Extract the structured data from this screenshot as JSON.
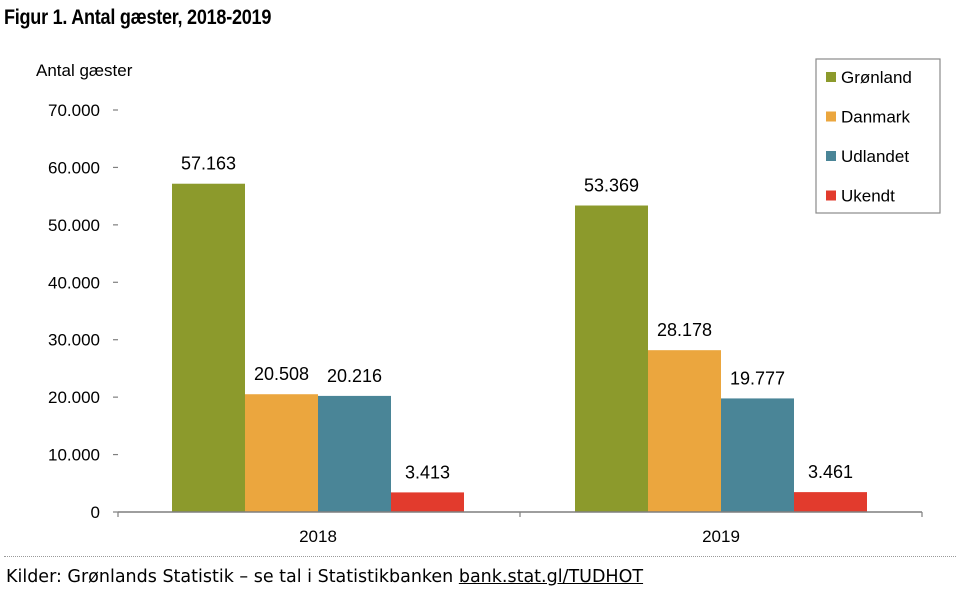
{
  "title": "Figur 1. Antal gæster, 2018-2019",
  "source": {
    "text": "Kilder: Grønlands Statistik – se tal i Statistikbanken ",
    "link": "bank.stat.gl/TUDHOT"
  },
  "chart_data": {
    "type": "bar",
    "ylabel": "Antal gæster",
    "categories": [
      "2018",
      "2019"
    ],
    "ylim": [
      0,
      70000
    ],
    "yticks": [
      0,
      10000,
      20000,
      30000,
      40000,
      50000,
      60000,
      70000
    ],
    "ytick_labels": [
      "0",
      "10.000",
      "20.000",
      "30.000",
      "40.000",
      "50.000",
      "60.000",
      "70.000"
    ],
    "grid": false,
    "legend_position": "top-right",
    "series": [
      {
        "name": "Grønland",
        "color": "#8c9a2c",
        "values": [
          57163,
          53369
        ],
        "labels": [
          "57.163",
          "53.369"
        ]
      },
      {
        "name": "Danmark",
        "color": "#eba63e",
        "values": [
          20508,
          28178
        ],
        "labels": [
          "20.508",
          "28.178"
        ]
      },
      {
        "name": "Udlandet",
        "color": "#4a8597",
        "values": [
          20216,
          19777
        ],
        "labels": [
          "20.216",
          "19.777"
        ]
      },
      {
        "name": "Ukendt",
        "color": "#e23b2d",
        "values": [
          3413,
          3461
        ],
        "labels": [
          "3.413",
          "3.461"
        ]
      }
    ]
  }
}
